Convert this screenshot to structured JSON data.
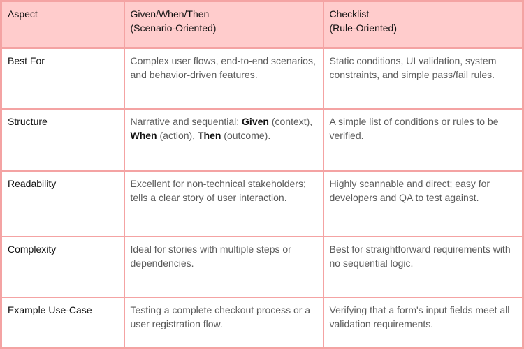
{
  "headers": {
    "aspect": "Aspect",
    "gwt_line1": "Given/When/Then",
    "gwt_line2": "(Scenario-Oriented)",
    "checklist_line1": "Checklist",
    "checklist_line2": "(Rule-Oriented)"
  },
  "rows": [
    {
      "aspect": "Best For",
      "gwt": "Complex user flows, end-to-end scenarios, and behavior-driven features.",
      "checklist": "Static conditions, UI validation, system constraints, and simple pass/fail rules."
    },
    {
      "aspect": "Structure",
      "gwt_parts": [
        "Narrative and sequential: ",
        "Given",
        " (context), ",
        "When",
        " (action), ",
        "Then",
        " (outcome)."
      ],
      "checklist": "A simple list of conditions or rules to be verified."
    },
    {
      "aspect": "Readability",
      "gwt": "Excellent for non-technical stakeholders; tells a clear story of user interaction.",
      "checklist": "Highly scannable and direct; easy for developers and QA to test against."
    },
    {
      "aspect": "Complexity",
      "gwt": "Ideal for stories with multiple steps or dependencies.",
      "checklist": "Best for straightforward requirements with no sequential logic."
    },
    {
      "aspect": "Example Use-Case",
      "gwt": "Testing a complete checkout process or a user registration flow.",
      "checklist": "Verifying that a form's input fields meet all validation requirements."
    }
  ],
  "colors": {
    "header_bg": "#ffcccc",
    "border": "#f4a3a3"
  }
}
